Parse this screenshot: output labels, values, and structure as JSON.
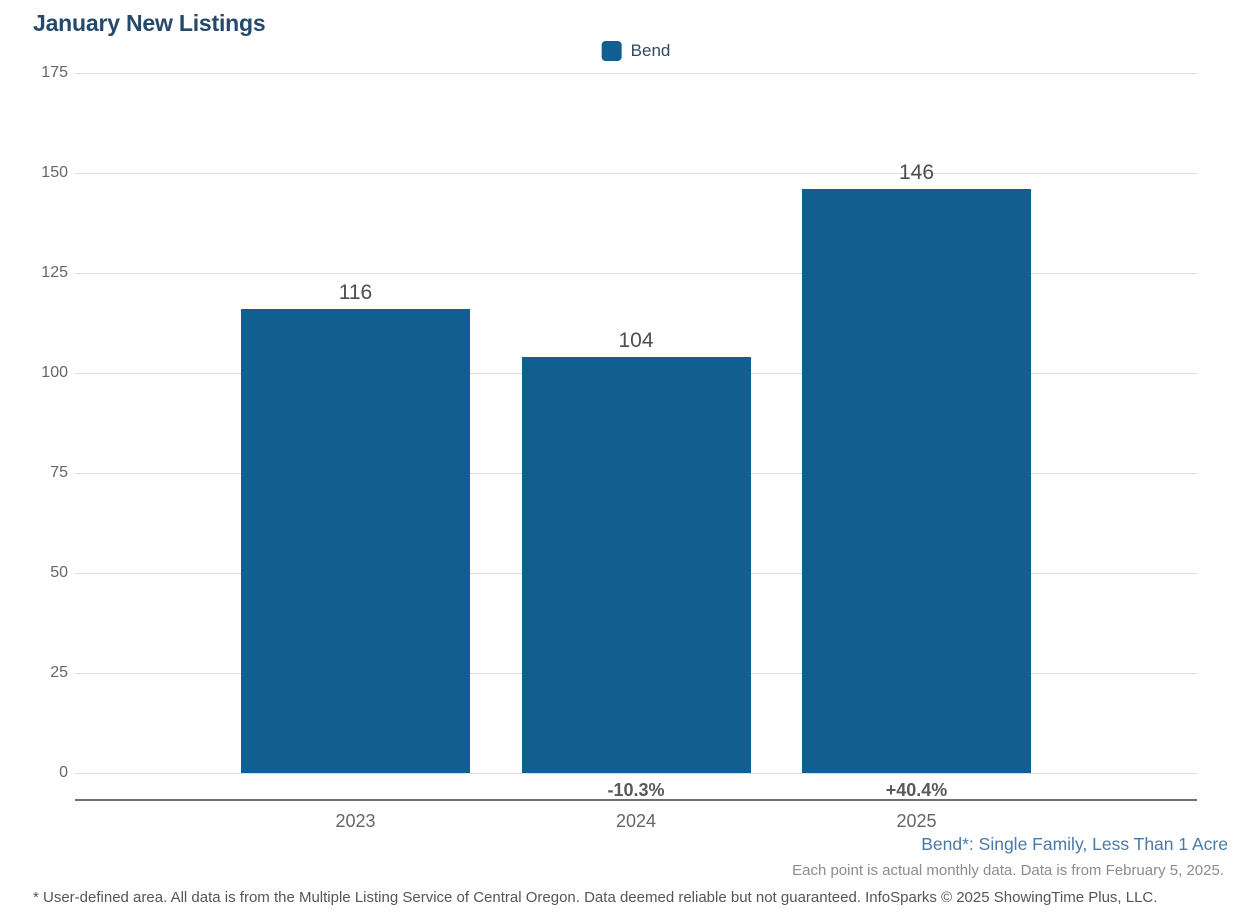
{
  "chart": {
    "title": "January New Listings",
    "legend": [
      {
        "label": "Bend"
      }
    ]
  },
  "chart_data": {
    "type": "bar",
    "title": "January New Listings",
    "categories": [
      "2023",
      "2024",
      "2025"
    ],
    "series": [
      {
        "name": "Bend",
        "values": [
          116,
          104,
          146
        ]
      }
    ],
    "value_labels": [
      "116",
      "104",
      "146"
    ],
    "pct_change_labels": [
      "",
      "-10.3%",
      "+40.4%"
    ],
    "yticks": [
      0,
      25,
      50,
      75,
      100,
      125,
      150,
      175
    ],
    "ylim": [
      0,
      175
    ],
    "xlabel": "",
    "ylabel": "",
    "grid": "horizontal",
    "legend_position": "top-center"
  },
  "footer": {
    "series_note": "Bend*: Single Family, Less Than 1 Acre",
    "data_note": "Each point is actual monthly data. Data is from February 5, 2025.",
    "disclaimer": "* User-defined area. All data is from the Multiple Listing Service of Central Oregon. Data deemed reliable but not guaranteed. InfoSparks © 2025 ShowingTime Plus, LLC."
  },
  "colors": {
    "bar": "#115e90",
    "title": "#24496b",
    "legend_text": "#334a5e",
    "tick_text": "#666666",
    "value_text": "#4d4d4d",
    "pct_text": "#595959",
    "gridline": "#dcdcdc",
    "axis_line": "#6e6e6e",
    "series_note": "#4a79a5",
    "data_note": "#8c8c8c",
    "disclaimer": "#555555"
  }
}
